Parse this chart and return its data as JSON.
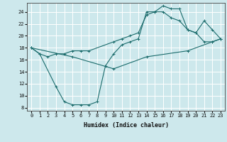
{
  "title": "",
  "xlabel": "Humidex (Indice chaleur)",
  "ylabel": "",
  "bg_color": "#cde8ec",
  "grid_color": "#ffffff",
  "line_color": "#1a6b6b",
  "xlim": [
    -0.5,
    23.5
  ],
  "ylim": [
    7.5,
    25.5
  ],
  "xticks": [
    0,
    1,
    2,
    3,
    4,
    5,
    6,
    7,
    8,
    9,
    10,
    11,
    12,
    13,
    14,
    15,
    16,
    17,
    18,
    19,
    20,
    21,
    22,
    23
  ],
  "yticks": [
    8,
    10,
    12,
    14,
    16,
    18,
    20,
    22,
    24
  ],
  "line1_x": [
    0,
    1,
    3,
    4,
    5,
    6,
    7,
    8,
    9,
    10,
    11,
    12,
    13,
    14,
    15,
    16,
    17,
    18,
    19,
    20,
    21,
    22,
    23
  ],
  "line1_y": [
    18,
    17,
    11.5,
    9,
    8.5,
    8.5,
    8.5,
    9,
    15,
    17,
    18.5,
    19,
    19.5,
    24,
    24,
    25,
    24.5,
    24.5,
    21,
    20.5,
    19,
    19,
    19.5
  ],
  "line2_x": [
    0,
    1,
    2,
    3,
    4,
    5,
    6,
    7,
    10,
    11,
    12,
    13,
    14,
    15,
    16,
    17,
    18,
    19,
    20,
    21,
    22,
    23
  ],
  "line2_y": [
    18,
    17,
    16.5,
    17,
    17,
    17.5,
    17.5,
    17.5,
    19,
    19.5,
    20,
    20.5,
    23.5,
    24,
    24,
    23,
    22.5,
    21,
    20.5,
    22.5,
    21,
    19.5
  ],
  "line3_x": [
    0,
    5,
    10,
    14,
    19,
    22,
    23
  ],
  "line3_y": [
    18,
    16.5,
    14.5,
    16.5,
    17.5,
    19,
    19.5
  ]
}
